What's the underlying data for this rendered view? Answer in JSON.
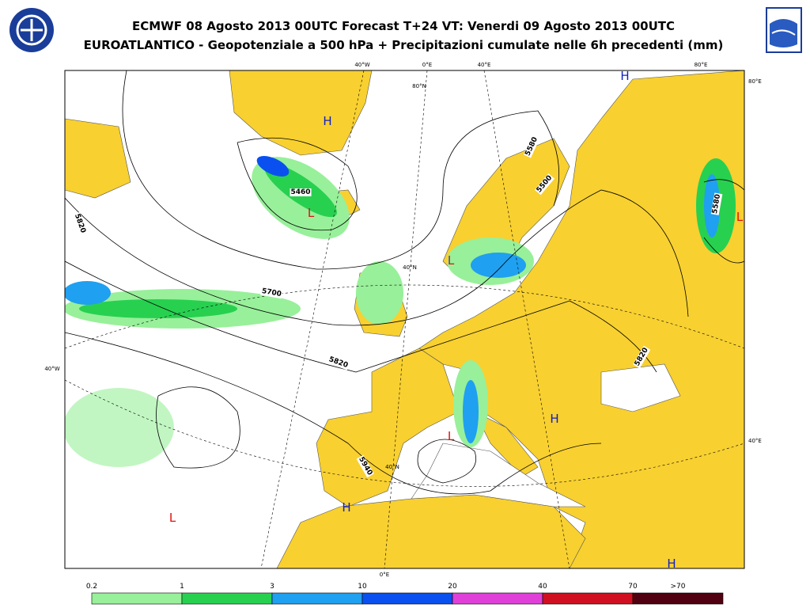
{
  "header": {
    "title": "ECMWF 08 Agosto 2013 00UTC Forecast T+24 VT: Venerdi 09 Agosto 2013 00UTC",
    "subtitle": "EUROATLANTICO - Geopotenziale a 500 hPa + Precipitazioni cumulate nelle 6h precedenti (mm)"
  },
  "grid_labels": [
    "40°W",
    "0°E",
    "40°E",
    "80°E",
    "80°E",
    "80°N",
    "40°N",
    "40°W",
    "40°E",
    "40°N",
    "0°E"
  ],
  "contour_labels": [
    "5460",
    "5700",
    "5820",
    "5820",
    "5940",
    "5580",
    "5500",
    "5580",
    "5820"
  ],
  "pressure_centers": [
    "H",
    "L",
    "H",
    "L",
    "L",
    "H",
    "L",
    "H",
    "L",
    "H"
  ],
  "legend": {
    "thresholds": [
      "0.2",
      "1",
      "3",
      "10",
      "20",
      "40",
      "70",
      ">70"
    ],
    "colors": [
      "#98f09a",
      "#28d050",
      "#1fa0f0",
      "#0a50f0",
      "#e040d8",
      "#d01020",
      "#500010"
    ]
  }
}
